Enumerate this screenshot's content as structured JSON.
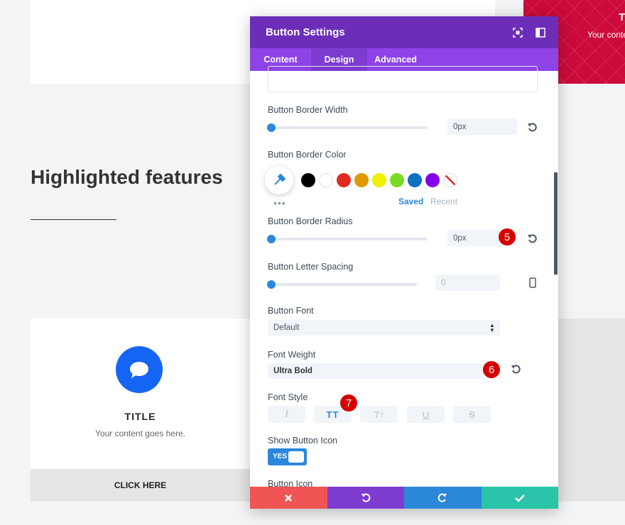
{
  "background": {
    "heading": "Highlighted features",
    "card": {
      "title": "TITLE",
      "text": "Your content goes here.",
      "button": "CLICK HERE"
    },
    "promo": {
      "title": "T",
      "text": "Your conte"
    }
  },
  "modal": {
    "title": "Button Settings",
    "tabs": [
      "Content",
      "Design",
      "Advanced"
    ],
    "active_tab": 1,
    "border_width": {
      "label": "Button Border Width",
      "value": "0px"
    },
    "border_color": {
      "label": "Button Border Color",
      "palette": [
        "#000000",
        "#ffffff",
        "#e02b20",
        "#e09900",
        "#edf000",
        "#7cda24",
        "#0c71c3",
        "#8300e9"
      ],
      "saved": "Saved",
      "recent": "Recent"
    },
    "border_radius": {
      "label": "Button Border Radius",
      "value": "0px",
      "badge": 5
    },
    "letter_spacing": {
      "label": "Button Letter Spacing",
      "value": "0"
    },
    "font": {
      "label": "Button Font",
      "value": "Default"
    },
    "font_weight": {
      "label": "Font Weight",
      "value": "Ultra Bold",
      "badge": 6
    },
    "font_style": {
      "label": "Font Style",
      "options": [
        "I",
        "TT",
        "Tt",
        "U",
        "S"
      ],
      "badge": 7
    },
    "show_icon": {
      "label": "Show Button Icon",
      "value": "YES"
    },
    "icon": {
      "label": "Button Icon"
    }
  }
}
